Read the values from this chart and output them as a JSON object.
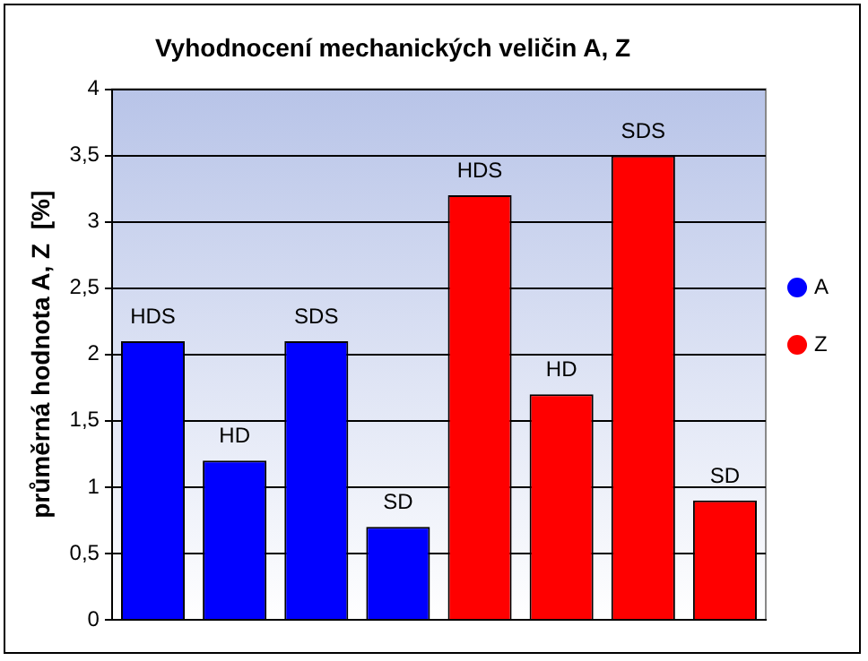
{
  "chart_data": {
    "type": "bar",
    "title": "Vyhodnocení mechanických veličin A, Z",
    "ylabel": "průměrná hodnota A, Z  [%]",
    "categories": [
      "HDS",
      "HD",
      "SDS",
      "SD",
      "HDS",
      "HD",
      "SDS",
      "SD"
    ],
    "series": [
      {
        "name": "A",
        "color": "#0000ff",
        "values": [
          2.1,
          1.2,
          2.1,
          0.7,
          null,
          null,
          null,
          null
        ]
      },
      {
        "name": "Z",
        "color": "#ff0000",
        "values": [
          null,
          null,
          null,
          null,
          3.2,
          1.7,
          3.5,
          0.9
        ]
      }
    ],
    "ylim": [
      0,
      4
    ],
    "yticks": [
      0,
      {
        "value": 0.5,
        "label": "0,5"
      },
      1,
      {
        "value": 1.5,
        "label": "1,5"
      },
      2,
      {
        "value": 2.5,
        "label": "2,5"
      },
      3,
      {
        "value": 3.5,
        "label": "3,5"
      },
      4
    ],
    "grid": "y",
    "legend": "right"
  }
}
